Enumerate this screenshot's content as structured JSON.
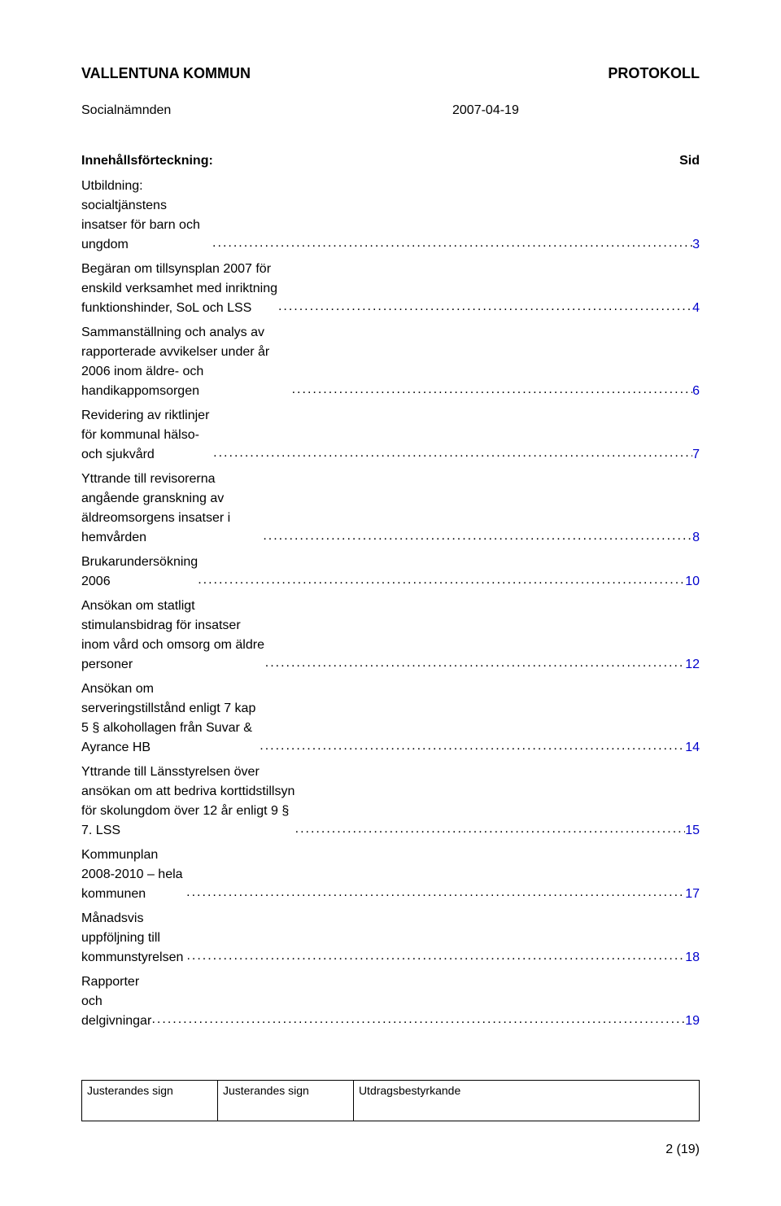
{
  "header": {
    "left": "VALLENTUNA KOMMUN",
    "right": "PROTOKOLL",
    "sub_left": "Socialnämnden",
    "sub_right": "2007-04-19"
  },
  "toc": {
    "title": "Innehållsförteckning:",
    "page_label": "Sid",
    "entries": [
      {
        "text": "Utbildning: socialtjänstens insatser för barn och ungdom",
        "page": "3"
      },
      {
        "text": "Begäran om tillsynsplan 2007 för enskild verksamhet med inriktning funktionshinder, SoL och LSS",
        "page": "4"
      },
      {
        "text": "Sammanställning och analys av rapporterade avvikelser under år 2006 inom äldre- och handikappomsorgen",
        "page": "6"
      },
      {
        "text": "Revidering av riktlinjer för kommunal hälso- och sjukvård",
        "page": "7"
      },
      {
        "text": "Yttrande till revisorerna angående granskning av äldreomsorgens insatser i hemvården",
        "page": "8"
      },
      {
        "text": "Brukarundersökning 2006",
        "page": "10"
      },
      {
        "text": "Ansökan om statligt stimulansbidrag för insatser inom vård och omsorg om äldre personer",
        "page": "12"
      },
      {
        "text": "Ansökan om serveringstillstånd enligt 7 kap 5 § alkohollagen från Suvar & Ayrance HB",
        "page": "14"
      },
      {
        "text": "Yttrande till Länsstyrelsen över ansökan om att bedriva korttidstillsyn för skolungdom över 12 år enligt 9 § 7. LSS",
        "page": "15"
      },
      {
        "text": "Kommunplan 2008-2010 – hela kommunen",
        "page": "17"
      },
      {
        "text": "Månadsvis uppföljning till kommunstyrelsen",
        "page": "18"
      },
      {
        "text": "Rapporter och delgivningar",
        "page": "19"
      }
    ]
  },
  "footer": {
    "sign_a": "Justerandes sign",
    "sign_b": "Justerandes sign",
    "sign_c": "Utdragsbestyrkande",
    "page_number": "2 (19)"
  },
  "colors": {
    "link": "#0000cc",
    "text": "#000000",
    "bg": "#ffffff"
  }
}
